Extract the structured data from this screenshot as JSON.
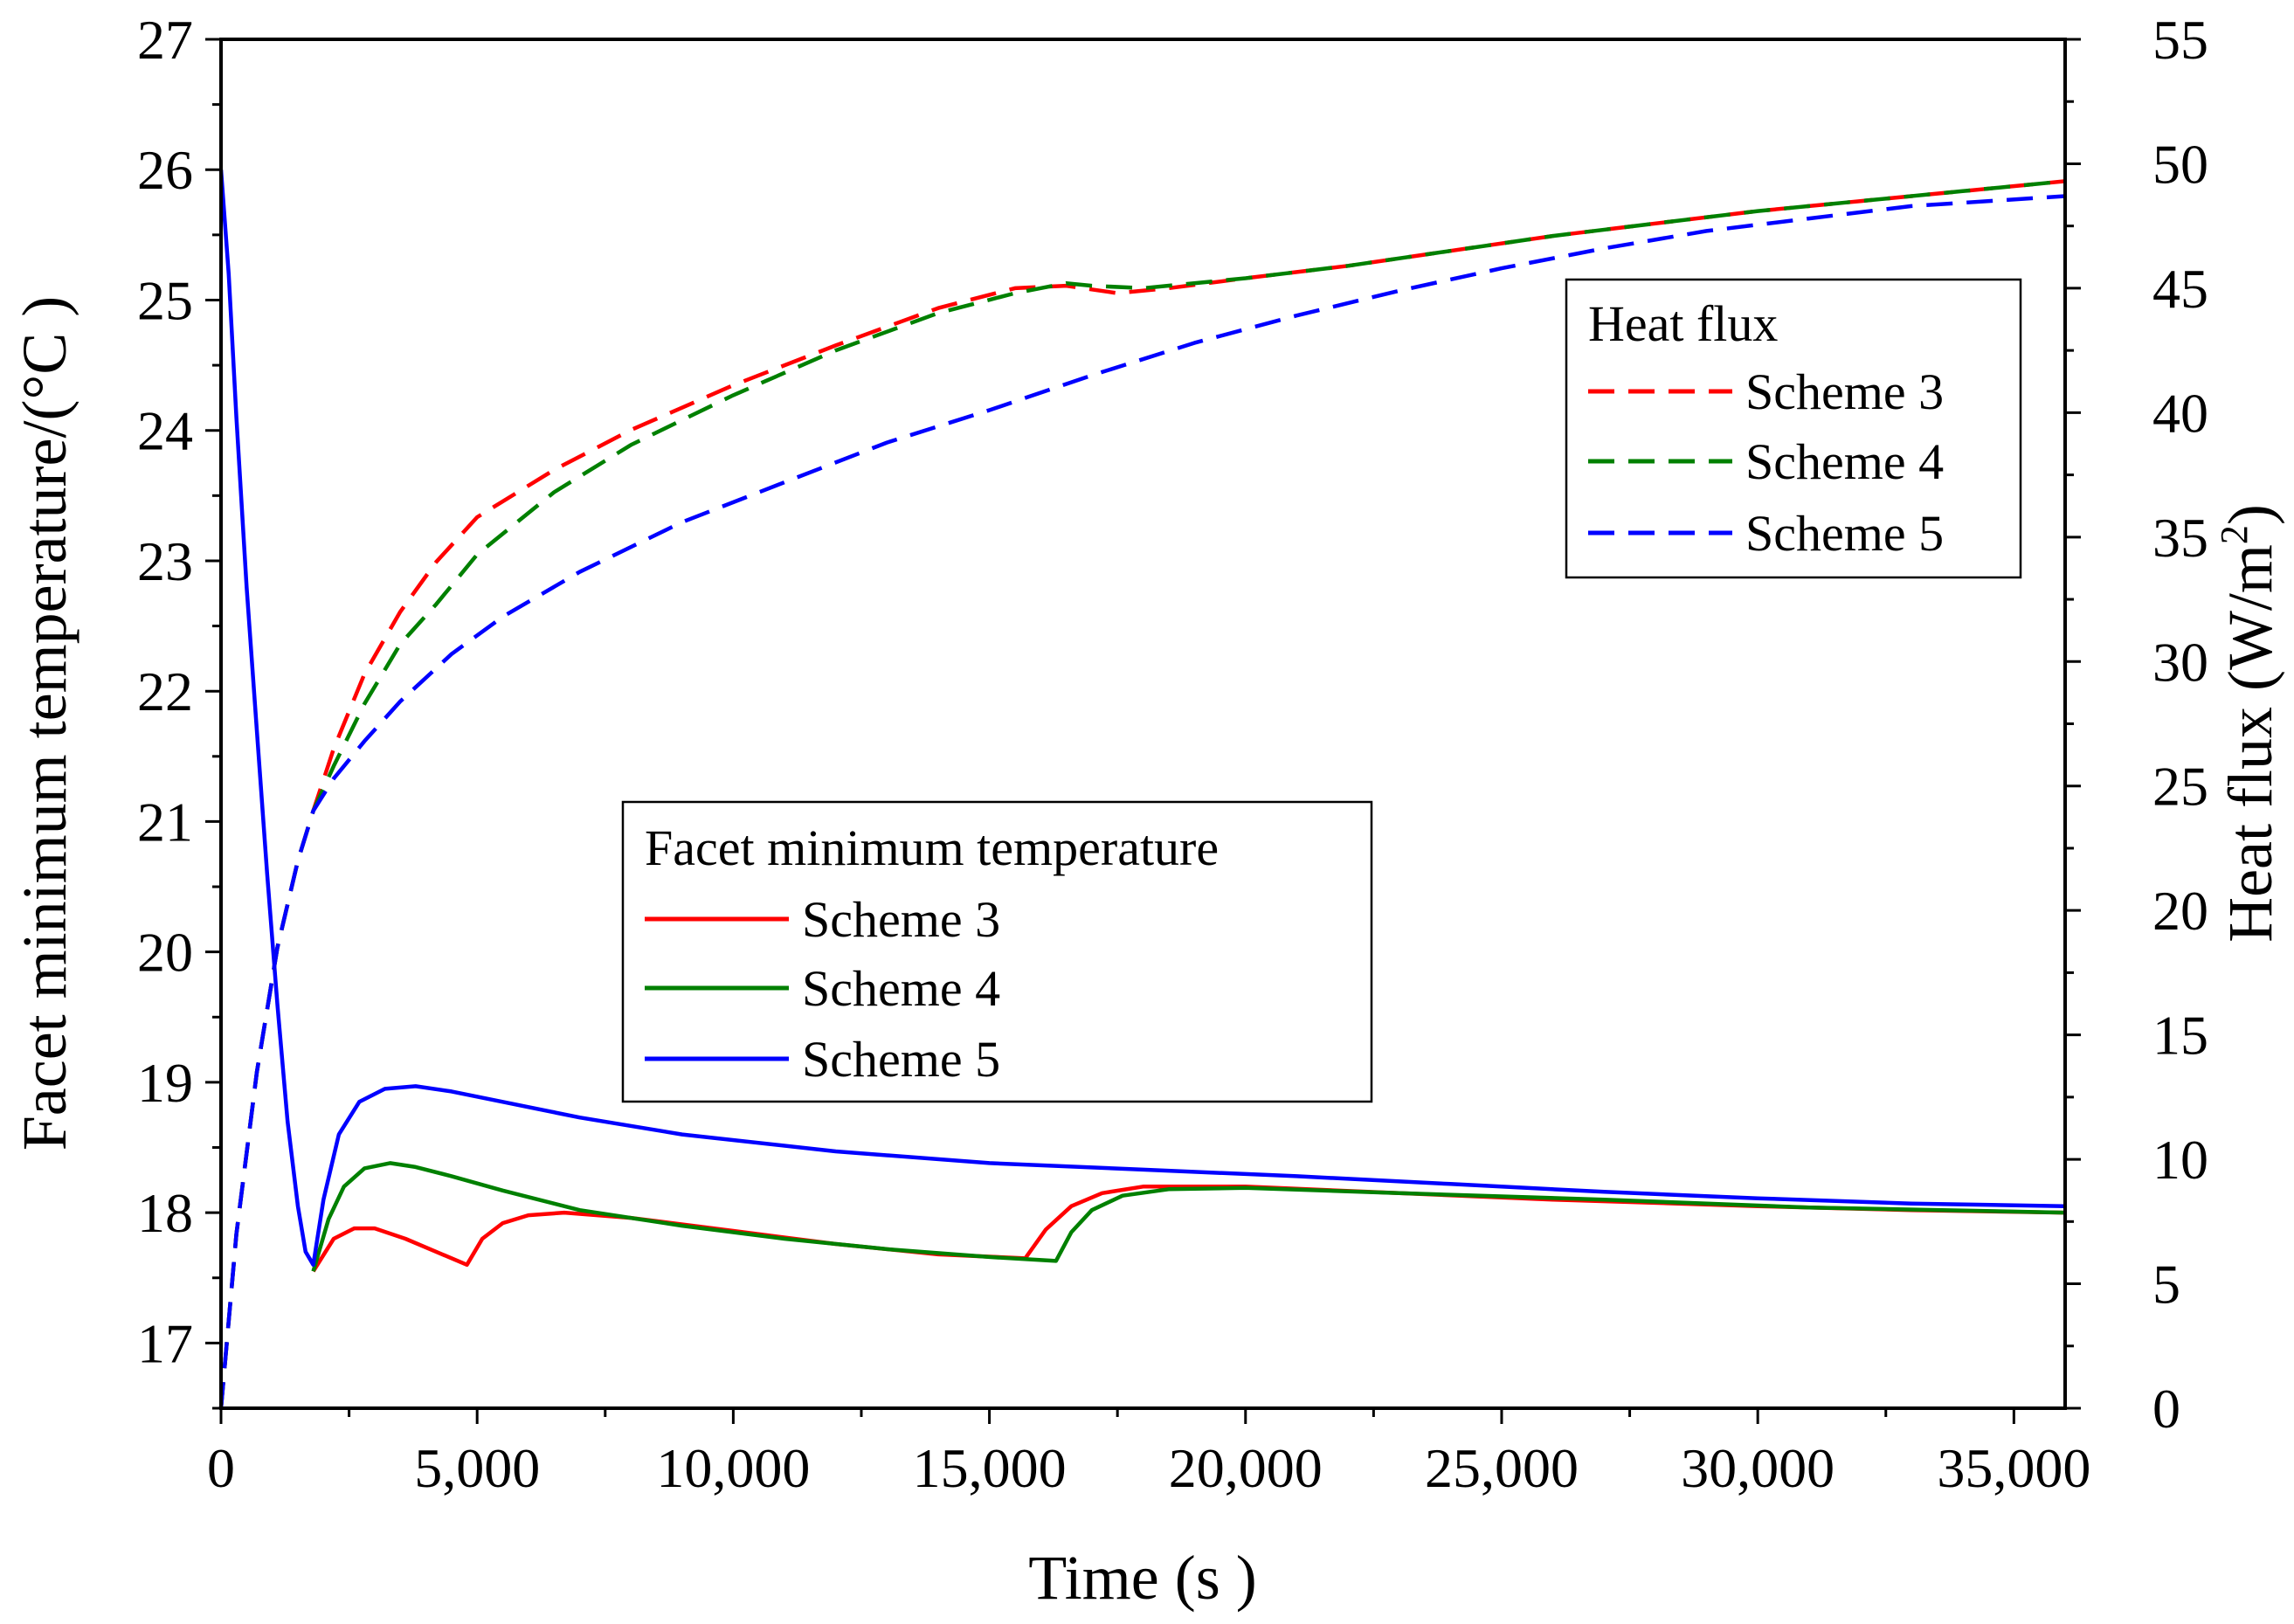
{
  "chart_data": {
    "type": "line",
    "title": "",
    "xlabel": "Time (s )",
    "ylabel_left": "Facet minimum temperature/(°C )",
    "ylabel_right_prefix": "Heat flux (W/m",
    "ylabel_right_sup": "2",
    "ylabel_right_suffix": ")",
    "xlim": [
      0,
      36000
    ],
    "ylim_left": [
      16.5,
      27
    ],
    "ylim_right": [
      0,
      55
    ],
    "x_ticks": [
      0,
      5000,
      10000,
      15000,
      20000,
      25000,
      30000,
      35000
    ],
    "x_tick_labels": [
      "0",
      "5,000",
      "10,000",
      "15,000",
      "20,000",
      "25,000",
      "30,000",
      "35,000"
    ],
    "y_left_ticks": [
      17,
      18,
      19,
      20,
      21,
      22,
      23,
      24,
      25,
      26,
      27
    ],
    "y_left_tick_labels": [
      "17",
      "18",
      "19",
      "20",
      "21",
      "22",
      "23",
      "24",
      "25",
      "26",
      "27"
    ],
    "y_right_ticks": [
      0,
      5,
      10,
      15,
      20,
      25,
      30,
      35,
      40,
      45,
      50,
      55
    ],
    "y_right_tick_labels": [
      "0",
      "5",
      "10",
      "15",
      "20",
      "25",
      "30",
      "35",
      "40",
      "45",
      "50",
      "55"
    ],
    "grid": false,
    "colors": {
      "scheme3": "#ff0000",
      "scheme4": "#008000",
      "scheme5": "#0000ff"
    },
    "legend_temperature": {
      "title": "Facet minimum temperature",
      "placement": "center-left",
      "entries": [
        "Scheme 3",
        "Scheme 4",
        "Scheme 5"
      ]
    },
    "legend_heatflux": {
      "title": "Heat flux",
      "placement": "top-right",
      "entries": [
        "Scheme 3",
        "Scheme 4",
        "Scheme 5"
      ]
    },
    "series": [
      {
        "name": "Scheme 3",
        "group": "Facet minimum temperature",
        "axis": "left",
        "style": "solid",
        "color_key": "scheme3",
        "x": [
          1800,
          2200,
          2600,
          3000,
          3600,
          4200,
          4800,
          5100,
          5500,
          6000,
          6700,
          8000,
          10000,
          12000,
          14000,
          15700,
          16100,
          16600,
          17200,
          18000,
          20000,
          23000,
          26000,
          30000,
          33000,
          36000
        ],
        "y": [
          17.55,
          17.8,
          17.88,
          17.88,
          17.8,
          17.7,
          17.6,
          17.8,
          17.92,
          17.98,
          18.0,
          17.96,
          17.86,
          17.76,
          17.68,
          17.65,
          17.87,
          18.05,
          18.15,
          18.2,
          18.2,
          18.15,
          18.1,
          18.05,
          18.02,
          18.0
        ]
      },
      {
        "name": "Scheme 4",
        "group": "Facet minimum temperature",
        "axis": "left",
        "style": "solid",
        "color_key": "scheme4",
        "x": [
          1800,
          2100,
          2400,
          2800,
          3300,
          3800,
          4500,
          5500,
          7000,
          9000,
          11000,
          13000,
          15000,
          16300,
          16600,
          17000,
          17600,
          18500,
          20000,
          23000,
          27000,
          31000,
          36000
        ],
        "y": [
          17.55,
          17.95,
          18.2,
          18.34,
          18.38,
          18.35,
          18.28,
          18.17,
          18.02,
          17.9,
          17.8,
          17.72,
          17.66,
          17.63,
          17.85,
          18.02,
          18.13,
          18.18,
          18.19,
          18.15,
          18.1,
          18.04,
          18.0
        ]
      },
      {
        "name": "Scheme 5",
        "group": "Facet minimum temperature",
        "axis": "left",
        "style": "solid",
        "color_key": "scheme5",
        "x": [
          0,
          150,
          300,
          500,
          700,
          900,
          1100,
          1300,
          1500,
          1650,
          1800,
          2000,
          2300,
          2700,
          3200,
          3800,
          4500,
          5500,
          7000,
          9000,
          12000,
          15000,
          18000,
          21000,
          24000,
          27000,
          30000,
          33000,
          36000
        ],
        "y": [
          26.0,
          25.2,
          24.1,
          22.8,
          21.7,
          20.6,
          19.6,
          18.7,
          18.05,
          17.7,
          17.6,
          18.1,
          18.6,
          18.85,
          18.95,
          18.97,
          18.93,
          18.85,
          18.73,
          18.6,
          18.47,
          18.38,
          18.33,
          18.28,
          18.22,
          18.16,
          18.11,
          18.07,
          18.05
        ]
      },
      {
        "name": "Scheme 3",
        "group": "Heat flux",
        "axis": "right",
        "style": "dashed",
        "color_key": "scheme3",
        "x": [
          0,
          300,
          700,
          1100,
          1500,
          1800,
          2200,
          2800,
          3500,
          4200,
          5000,
          6500,
          8000,
          10000,
          12000,
          14000,
          15500,
          16500,
          17500,
          18500,
          20000,
          22000,
          24000,
          26000,
          28000,
          30000,
          32000,
          34000,
          36000
        ],
        "y": [
          0,
          7,
          13.5,
          18.5,
          22,
          24,
          26.5,
          29.5,
          32,
          34,
          35.8,
          37.7,
          39.3,
          41.1,
          42.7,
          44.2,
          45,
          45.1,
          44.8,
          45,
          45.4,
          45.9,
          46.5,
          47.1,
          47.6,
          48.1,
          48.5,
          48.9,
          49.3
        ]
      },
      {
        "name": "Scheme 4",
        "group": "Heat flux",
        "axis": "right",
        "style": "dashed",
        "color_key": "scheme4",
        "x": [
          0,
          300,
          700,
          1100,
          1500,
          1800,
          2200,
          2800,
          3500,
          4200,
          5000,
          6500,
          8000,
          10000,
          12000,
          14000,
          15500,
          16500,
          17000,
          18000,
          20000,
          22000,
          24000,
          26000,
          28000,
          30000,
          32000,
          34000,
          36000
        ],
        "y": [
          0,
          7,
          13.5,
          18.5,
          22,
          24,
          25.8,
          28.3,
          30.7,
          32.3,
          34.3,
          36.8,
          38.7,
          40.7,
          42.5,
          44,
          44.8,
          45.2,
          45.1,
          45,
          45.4,
          45.9,
          46.5,
          47.1,
          47.6,
          48.1,
          48.5,
          48.9,
          49.3
        ]
      },
      {
        "name": "Scheme 5",
        "group": "Heat flux",
        "axis": "right",
        "style": "dashed",
        "color_key": "scheme5",
        "x": [
          0,
          300,
          700,
          1100,
          1500,
          1800,
          2200,
          2800,
          3500,
          4500,
          5500,
          7000,
          9000,
          11000,
          13000,
          15000,
          17000,
          19000,
          21000,
          23000,
          25000,
          27000,
          29000,
          31000,
          33000,
          36000
        ],
        "y": [
          0,
          7,
          13.5,
          18.5,
          22,
          24,
          25.3,
          26.8,
          28.4,
          30.3,
          31.8,
          33.6,
          35.6,
          37.2,
          38.8,
          40.1,
          41.5,
          42.8,
          43.9,
          44.9,
          45.8,
          46.6,
          47.3,
          47.8,
          48.3,
          48.7
        ]
      }
    ]
  }
}
